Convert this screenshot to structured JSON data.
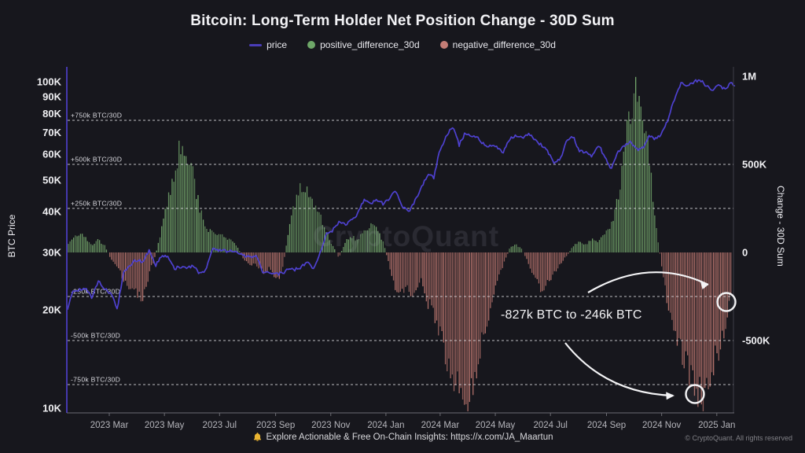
{
  "title": "Bitcoin: Long-Term Holder Net Position Change - 30D Sum",
  "legend": [
    {
      "label": "price",
      "marker": "line",
      "color": "#4a3db8"
    },
    {
      "label": "positive_difference_30d",
      "marker": "dot",
      "color": "#6ea768"
    },
    {
      "label": "negative_difference_30d",
      "marker": "dot",
      "color": "#c47d76"
    }
  ],
  "watermark": "CryptoQuant",
  "annotation": {
    "text": "-827k BTC to -246k BTC"
  },
  "footer": {
    "promo": "Explore Actionable & Free On-Chain Insights: https://x.com/JA_Maartun",
    "copyright": "© CryptoQuant. All rights reserved"
  },
  "axes": {
    "left": {
      "label": "BTC Price",
      "ticks": [
        {
          "label": "100K",
          "value": 100000
        },
        {
          "label": "90K",
          "value": 90000
        },
        {
          "label": "80K",
          "value": 80000
        },
        {
          "label": "70K",
          "value": 70000
        },
        {
          "label": "60K",
          "value": 60000
        },
        {
          "label": "50K",
          "value": 50000
        },
        {
          "label": "40K",
          "value": 40000
        },
        {
          "label": "30K",
          "value": 30000
        },
        {
          "label": "20K",
          "value": 20000
        },
        {
          "label": "10K",
          "value": 10000
        }
      ]
    },
    "right": {
      "label": "Change - 30D Sum",
      "ticks": [
        {
          "label": "1M",
          "value": 1000
        },
        {
          "label": "500K",
          "value": 500
        },
        {
          "label": "0",
          "value": 0
        },
        {
          "label": "-500K",
          "value": -500
        }
      ]
    },
    "x": {
      "ticks": [
        {
          "label": "2023 Mar",
          "date": "2023-03-01"
        },
        {
          "label": "2023 May",
          "date": "2023-05-01"
        },
        {
          "label": "2023 Jul",
          "date": "2023-07-01"
        },
        {
          "label": "2023 Sep",
          "date": "2023-09-01"
        },
        {
          "label": "2023 Nov",
          "date": "2023-11-01"
        },
        {
          "label": "2024 Jan",
          "date": "2024-01-01"
        },
        {
          "label": "2024 Mar",
          "date": "2024-03-01"
        },
        {
          "label": "2024 May",
          "date": "2024-05-01"
        },
        {
          "label": "2024 Jul",
          "date": "2024-07-01"
        },
        {
          "label": "2024 Sep",
          "date": "2024-09-01"
        },
        {
          "label": "2024 Nov",
          "date": "2024-11-01"
        },
        {
          "label": "2025 Jan",
          "date": "2025-01-01"
        }
      ]
    }
  },
  "guides": [
    {
      "label": "+750k BTC/30D",
      "value": 750
    },
    {
      "label": "+500k BTC/30D",
      "value": 500
    },
    {
      "label": "+250k BTC/30D",
      "value": 250
    },
    {
      "label": "-250k BTC/30D",
      "value": -250
    },
    {
      "label": "-500k BTC/30D",
      "value": -500
    },
    {
      "label": "-750k BTC/30D",
      "value": -750
    }
  ],
  "chart_data": {
    "type": "combo",
    "x_range": [
      "2023-01-13",
      "2025-01-22"
    ],
    "left_axis": {
      "scale": "log",
      "unit": "USD",
      "lim": [
        10000,
        110000
      ]
    },
    "right_axis": {
      "scale": "linear",
      "unit": "kBTC per 30D",
      "lim": [
        -900,
        1050
      ]
    },
    "series": [
      {
        "name": "price",
        "type": "line",
        "axis": "left",
        "color": "#4e41d0",
        "points": [
          [
            "2023-01-13",
            19900
          ],
          [
            "2023-01-20",
            22700
          ],
          [
            "2023-01-27",
            23000
          ],
          [
            "2023-02-03",
            23300
          ],
          [
            "2023-02-10",
            21800
          ],
          [
            "2023-02-17",
            24600
          ],
          [
            "2023-02-24",
            23200
          ],
          [
            "2023-03-03",
            22400
          ],
          [
            "2023-03-10",
            20200
          ],
          [
            "2023-03-17",
            26000
          ],
          [
            "2023-03-24",
            27500
          ],
          [
            "2023-03-31",
            28500
          ],
          [
            "2023-04-07",
            28000
          ],
          [
            "2023-04-14",
            30400
          ],
          [
            "2023-04-21",
            27300
          ],
          [
            "2023-04-28",
            29300
          ],
          [
            "2023-05-05",
            28900
          ],
          [
            "2023-05-12",
            26800
          ],
          [
            "2023-05-19",
            27100
          ],
          [
            "2023-05-26",
            26900
          ],
          [
            "2023-06-02",
            27200
          ],
          [
            "2023-06-09",
            25900
          ],
          [
            "2023-06-16",
            26500
          ],
          [
            "2023-06-23",
            30700
          ],
          [
            "2023-06-30",
            30500
          ],
          [
            "2023-07-07",
            30300
          ],
          [
            "2023-07-14",
            30300
          ],
          [
            "2023-07-21",
            29900
          ],
          [
            "2023-07-28",
            29300
          ],
          [
            "2023-08-04",
            29100
          ],
          [
            "2023-08-11",
            29400
          ],
          [
            "2023-08-18",
            26100
          ],
          [
            "2023-08-25",
            26000
          ],
          [
            "2023-09-01",
            25800
          ],
          [
            "2023-09-08",
            25900
          ],
          [
            "2023-09-15",
            26600
          ],
          [
            "2023-09-22",
            26600
          ],
          [
            "2023-09-29",
            27000
          ],
          [
            "2023-10-06",
            27900
          ],
          [
            "2023-10-13",
            26900
          ],
          [
            "2023-10-20",
            29900
          ],
          [
            "2023-10-27",
            34100
          ],
          [
            "2023-11-03",
            35100
          ],
          [
            "2023-11-10",
            37100
          ],
          [
            "2023-11-17",
            36500
          ],
          [
            "2023-11-24",
            37800
          ],
          [
            "2023-12-01",
            39500
          ],
          [
            "2023-12-08",
            43800
          ],
          [
            "2023-12-15",
            42000
          ],
          [
            "2023-12-22",
            43700
          ],
          [
            "2023-12-29",
            42300
          ],
          [
            "2024-01-05",
            44000
          ],
          [
            "2024-01-12",
            46300
          ],
          [
            "2024-01-19",
            41600
          ],
          [
            "2024-01-26",
            40000
          ],
          [
            "2024-02-02",
            43000
          ],
          [
            "2024-02-09",
            47200
          ],
          [
            "2024-02-16",
            52000
          ],
          [
            "2024-02-23",
            51000
          ],
          [
            "2024-03-01",
            62000
          ],
          [
            "2024-03-08",
            68300
          ],
          [
            "2024-03-15",
            73000
          ],
          [
            "2024-03-22",
            64000
          ],
          [
            "2024-03-29",
            69900
          ],
          [
            "2024-04-05",
            67800
          ],
          [
            "2024-04-12",
            67200
          ],
          [
            "2024-04-19",
            63900
          ],
          [
            "2024-04-26",
            63800
          ],
          [
            "2024-05-03",
            62900
          ],
          [
            "2024-05-10",
            60800
          ],
          [
            "2024-05-17",
            66900
          ],
          [
            "2024-05-24",
            68500
          ],
          [
            "2024-05-31",
            67500
          ],
          [
            "2024-06-07",
            69300
          ],
          [
            "2024-06-14",
            66000
          ],
          [
            "2024-06-21",
            64100
          ],
          [
            "2024-06-28",
            61000
          ],
          [
            "2024-07-05",
            56600
          ],
          [
            "2024-07-12",
            57900
          ],
          [
            "2024-07-19",
            66700
          ],
          [
            "2024-07-26",
            67900
          ],
          [
            "2024-08-02",
            61400
          ],
          [
            "2024-08-09",
            60900
          ],
          [
            "2024-08-16",
            58700
          ],
          [
            "2024-08-23",
            64100
          ],
          [
            "2024-08-30",
            59100
          ],
          [
            "2024-09-06",
            54200
          ],
          [
            "2024-09-13",
            60500
          ],
          [
            "2024-09-20",
            63300
          ],
          [
            "2024-09-27",
            65800
          ],
          [
            "2024-10-04",
            62100
          ],
          [
            "2024-10-11",
            62500
          ],
          [
            "2024-10-18",
            68400
          ],
          [
            "2024-10-25",
            66600
          ],
          [
            "2024-11-01",
            69500
          ],
          [
            "2024-11-08",
            76500
          ],
          [
            "2024-11-15",
            88000
          ],
          [
            "2024-11-22",
            98900
          ],
          [
            "2024-11-29",
            97500
          ],
          [
            "2024-12-06",
            99900
          ],
          [
            "2024-12-13",
            101400
          ],
          [
            "2024-12-20",
            97500
          ],
          [
            "2024-12-27",
            94300
          ],
          [
            "2025-01-03",
            98200
          ],
          [
            "2025-01-10",
            94700
          ],
          [
            "2025-01-17",
            100500
          ],
          [
            "2025-01-22",
            96000
          ]
        ]
      },
      {
        "name": "net_position_change_30d",
        "type": "bar",
        "axis": "right",
        "positive_name": "positive_difference_30d",
        "positive_color": "#74a76c",
        "negative_name": "negative_difference_30d",
        "negative_color": "#bb766f",
        "units": "kBTC",
        "points": [
          [
            "2023-01-13",
            25
          ],
          [
            "2023-01-20",
            95
          ],
          [
            "2023-01-27",
            100
          ],
          [
            "2023-02-03",
            85
          ],
          [
            "2023-02-10",
            40
          ],
          [
            "2023-02-17",
            70
          ],
          [
            "2023-02-24",
            40
          ],
          [
            "2023-03-03",
            -40
          ],
          [
            "2023-03-10",
            -80
          ],
          [
            "2023-03-17",
            -150
          ],
          [
            "2023-03-24",
            -200
          ],
          [
            "2023-03-31",
            -240
          ],
          [
            "2023-04-07",
            -275
          ],
          [
            "2023-04-14",
            -120
          ],
          [
            "2023-04-21",
            -20
          ],
          [
            "2023-04-28",
            140
          ],
          [
            "2023-05-05",
            300
          ],
          [
            "2023-05-12",
            460
          ],
          [
            "2023-05-19",
            590
          ],
          [
            "2023-05-26",
            555
          ],
          [
            "2023-06-02",
            430
          ],
          [
            "2023-06-09",
            250
          ],
          [
            "2023-06-16",
            130
          ],
          [
            "2023-06-23",
            120
          ],
          [
            "2023-06-30",
            105
          ],
          [
            "2023-07-07",
            90
          ],
          [
            "2023-07-14",
            70
          ],
          [
            "2023-07-21",
            30
          ],
          [
            "2023-07-28",
            -45
          ],
          [
            "2023-08-04",
            -65
          ],
          [
            "2023-08-11",
            -75
          ],
          [
            "2023-08-18",
            -110
          ],
          [
            "2023-08-25",
            -90
          ],
          [
            "2023-09-01",
            -170
          ],
          [
            "2023-09-08",
            -110
          ],
          [
            "2023-09-15",
            100
          ],
          [
            "2023-09-22",
            280
          ],
          [
            "2023-09-29",
            400
          ],
          [
            "2023-10-06",
            375
          ],
          [
            "2023-10-13",
            300
          ],
          [
            "2023-10-20",
            210
          ],
          [
            "2023-10-27",
            120
          ],
          [
            "2023-11-03",
            40
          ],
          [
            "2023-11-10",
            -30
          ],
          [
            "2023-11-17",
            60
          ],
          [
            "2023-11-24",
            90
          ],
          [
            "2023-12-01",
            70
          ],
          [
            "2023-12-08",
            120
          ],
          [
            "2023-12-15",
            160
          ],
          [
            "2023-12-22",
            140
          ],
          [
            "2023-12-29",
            60
          ],
          [
            "2024-01-05",
            -80
          ],
          [
            "2024-01-12",
            -200
          ],
          [
            "2024-01-19",
            -230
          ],
          [
            "2024-01-26",
            -210
          ],
          [
            "2024-02-02",
            -240
          ],
          [
            "2024-02-09",
            -165
          ],
          [
            "2024-02-16",
            -280
          ],
          [
            "2024-02-23",
            -330
          ],
          [
            "2024-03-01",
            -470
          ],
          [
            "2024-03-08",
            -590
          ],
          [
            "2024-03-15",
            -680
          ],
          [
            "2024-03-22",
            -760
          ],
          [
            "2024-03-29",
            -827
          ],
          [
            "2024-04-05",
            -790
          ],
          [
            "2024-04-12",
            -620
          ],
          [
            "2024-04-19",
            -450
          ],
          [
            "2024-04-26",
            -300
          ],
          [
            "2024-05-03",
            -160
          ],
          [
            "2024-05-10",
            -70
          ],
          [
            "2024-05-17",
            25
          ],
          [
            "2024-05-24",
            45
          ],
          [
            "2024-05-31",
            15
          ],
          [
            "2024-06-07",
            -70
          ],
          [
            "2024-06-14",
            -150
          ],
          [
            "2024-06-21",
            -205
          ],
          [
            "2024-06-28",
            -170
          ],
          [
            "2024-07-05",
            -115
          ],
          [
            "2024-07-12",
            -60
          ],
          [
            "2024-07-19",
            -20
          ],
          [
            "2024-07-26",
            35
          ],
          [
            "2024-08-02",
            60
          ],
          [
            "2024-08-09",
            45
          ],
          [
            "2024-08-16",
            80
          ],
          [
            "2024-08-23",
            60
          ],
          [
            "2024-08-30",
            110
          ],
          [
            "2024-09-06",
            150
          ],
          [
            "2024-09-13",
            290
          ],
          [
            "2024-09-20",
            520
          ],
          [
            "2024-09-27",
            830
          ],
          [
            "2024-10-04",
            985
          ],
          [
            "2024-10-11",
            860
          ],
          [
            "2024-10-18",
            560
          ],
          [
            "2024-10-25",
            180
          ],
          [
            "2024-11-01",
            -80
          ],
          [
            "2024-11-08",
            -320
          ],
          [
            "2024-11-15",
            -450
          ],
          [
            "2024-11-22",
            -540
          ],
          [
            "2024-11-29",
            -620
          ],
          [
            "2024-12-06",
            -790
          ],
          [
            "2024-12-13",
            -810
          ],
          [
            "2024-12-20",
            -780
          ],
          [
            "2024-12-27",
            -640
          ],
          [
            "2025-01-03",
            -545
          ],
          [
            "2025-01-10",
            -450
          ],
          [
            "2025-01-17",
            -246
          ]
        ]
      }
    ],
    "callouts": {
      "trough_value_kBTC": -827,
      "latest_value_kBTC": -246
    }
  }
}
